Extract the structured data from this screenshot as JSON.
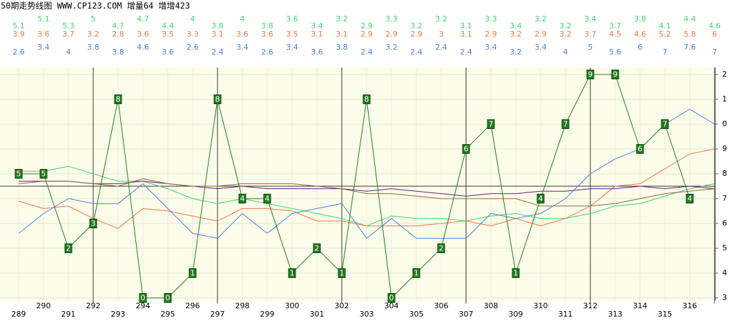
{
  "chart_data": {
    "type": "line",
    "title": "50期走势线图 WWW.CP123.COM 增量64 增增423",
    "categories": [
      "289",
      "290",
      "291",
      "292",
      "293",
      "294",
      "295",
      "296",
      "297",
      "298",
      "299",
      "300",
      "301",
      "302",
      "303",
      "304",
      "305",
      "306",
      "307",
      "308",
      "309",
      "310",
      "311",
      "312",
      "313",
      "314",
      "315",
      "316",
      null
    ],
    "ylim": [
      0,
      9
    ],
    "yticks": [
      {
        "value": 0,
        "label": "3"
      },
      {
        "value": 1,
        "label": "4"
      },
      {
        "value": 2,
        "label": "5"
      },
      {
        "value": 3,
        "label": "6"
      },
      {
        "value": 4,
        "label": "7"
      },
      {
        "value": 5,
        "label": "8"
      },
      {
        "value": 6,
        "label": "9"
      },
      {
        "value": 7,
        "label": "0"
      },
      {
        "value": 8,
        "label": "1"
      },
      {
        "value": 9,
        "label": "2"
      }
    ],
    "reference_line": 4.5,
    "grid": true,
    "series": [
      {
        "color": "#3fd46e",
        "values": [
          5.1,
          5.1,
          5.3,
          5.0,
          4.7,
          4.7,
          4.4,
          4.0,
          3.8,
          4.0,
          3.8,
          3.6,
          3.4,
          3.2,
          2.9,
          3.3,
          3.2,
          3.2,
          3.1,
          3.3,
          3.4,
          3.2,
          3.2,
          3.4,
          3.7,
          3.8,
          4.1,
          4.4,
          4.6
        ]
      },
      {
        "color": "#f2743f",
        "values": [
          3.9,
          3.6,
          3.7,
          3.2,
          2.8,
          3.6,
          3.5,
          3.3,
          3.1,
          3.6,
          3.6,
          3.5,
          3.1,
          3.1,
          2.9,
          2.9,
          2.9,
          3.0,
          3.1,
          2.9,
          3.2,
          2.9,
          3.2,
          3.7,
          4.5,
          4.6,
          5.2,
          5.8,
          6.0
        ]
      },
      {
        "color": "#4a7fe6",
        "values": [
          2.6,
          3.4,
          4.0,
          3.8,
          3.8,
          4.6,
          3.6,
          2.6,
          2.4,
          3.4,
          2.6,
          3.4,
          3.6,
          3.8,
          2.4,
          3.2,
          2.4,
          2.4,
          2.4,
          3.4,
          3.2,
          3.4,
          4.0,
          5.0,
          5.6,
          6.0,
          7.0,
          7.6,
          7.0
        ]
      },
      {
        "color": "#6a1a7a",
        "values": [
          4.7,
          4.7,
          4.7,
          4.6,
          4.6,
          4.7,
          4.6,
          4.5,
          4.4,
          4.5,
          4.4,
          4.4,
          4.4,
          4.4,
          4.3,
          4.4,
          4.3,
          4.2,
          4.1,
          4.2,
          4.2,
          4.3,
          4.3,
          4.4,
          4.4,
          4.5,
          4.4,
          4.5,
          4.4
        ]
      },
      {
        "color": "#8a6a3a",
        "values": [
          4.6,
          4.7,
          4.7,
          4.6,
          4.5,
          4.8,
          4.6,
          4.5,
          4.5,
          4.6,
          4.6,
          4.6,
          4.5,
          4.4,
          4.2,
          4.2,
          4.1,
          4.0,
          4.0,
          4.0,
          4.0,
          3.7,
          3.7,
          3.7,
          3.8,
          4.0,
          4.2,
          4.3,
          4.4
        ]
      },
      {
        "color": "#1f7a1f",
        "markers": true,
        "values": [
          5,
          5,
          2,
          3,
          8,
          0,
          0,
          1,
          8,
          4,
          4,
          1,
          2,
          1,
          8,
          0,
          1,
          2,
          6,
          7,
          1,
          4,
          7,
          9,
          9,
          6,
          7,
          4,
          null
        ]
      }
    ]
  }
}
